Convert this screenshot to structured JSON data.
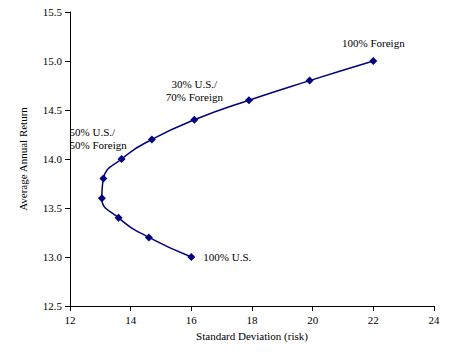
{
  "chart_data": {
    "type": "line",
    "x_label": "Standard Deviation (risk)",
    "y_label": "Average Annual Return",
    "x": [
      16.0,
      14.6,
      13.6,
      13.05,
      13.1,
      13.7,
      14.7,
      16.1,
      17.9,
      19.9,
      22.0
    ],
    "values": [
      13.0,
      13.2,
      13.4,
      13.6,
      13.8,
      14.0,
      14.2,
      14.4,
      14.6,
      14.8,
      15.0
    ],
    "point_labels": [
      "100% U.S.",
      null,
      null,
      null,
      null,
      "50% U.S./\n50% Foreign",
      null,
      "30% U.S./\n70% Foreign",
      null,
      null,
      "100% Foreign"
    ],
    "color": "#000080",
    "marker": "diamond",
    "line_style": "solid",
    "xlim": [
      12,
      24
    ],
    "xticks": [
      12,
      14,
      16,
      18,
      20,
      22,
      24
    ],
    "ylim": [
      12.5,
      15.5
    ],
    "yticks": [
      12.5,
      {
        "value": 13,
        "label": "13.0"
      },
      13.5,
      {
        "value": 14,
        "label": "14.0"
      },
      14.5,
      {
        "value": 15,
        "label": "15.0"
      },
      15.5
    ],
    "grid": false
  }
}
